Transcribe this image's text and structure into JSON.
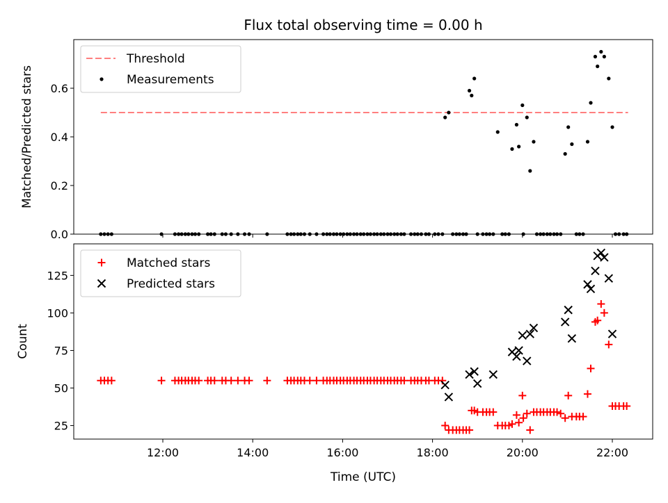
{
  "chart_data": [
    {
      "type": "scatter",
      "title": "Flux total observing time = 0.00 h",
      "xlabel": "",
      "ylabel": "Matched/Predicted stars",
      "x_unit": "hours UTC",
      "xlim": [
        10.0,
        23.0
      ],
      "ylim": [
        0,
        0.8
      ],
      "yticks": [
        0.0,
        0.2,
        0.4,
        0.6
      ],
      "ytick_labels": [
        "0.0",
        "0.2",
        "0.4",
        "0.6"
      ],
      "xticks": [
        12,
        14,
        16,
        18,
        20,
        22
      ],
      "grid": false,
      "legend_position": "top-left",
      "colors": {
        "threshold": "#ff7f7f",
        "measurements": "#000000"
      },
      "series": [
        {
          "name": "Threshold",
          "kind": "dashed-line",
          "x": [
            10.62,
            22.35
          ],
          "y": [
            0.5,
            0.5
          ]
        },
        {
          "name": "Measurements",
          "kind": "points",
          "x": [
            10.62,
            10.7,
            10.78,
            10.86,
            11.97,
            12.27,
            12.35,
            12.42,
            12.5,
            12.57,
            12.65,
            12.72,
            12.8,
            13.0,
            13.07,
            13.15,
            13.32,
            13.4,
            13.52,
            13.67,
            13.82,
            13.92,
            14.32,
            14.77,
            14.85,
            14.92,
            15.0,
            15.07,
            15.15,
            15.27,
            15.42,
            15.57,
            15.65,
            15.72,
            15.8,
            15.87,
            15.95,
            16.02,
            16.1,
            16.17,
            16.25,
            16.32,
            16.4,
            16.47,
            16.55,
            16.62,
            16.7,
            16.77,
            16.85,
            16.92,
            17.0,
            17.07,
            17.15,
            17.22,
            17.3,
            17.37,
            17.52,
            17.6,
            17.67,
            17.75,
            17.85,
            17.92,
            18.05,
            18.13,
            18.22,
            18.28,
            18.36,
            18.45,
            18.53,
            18.6,
            18.68,
            18.75,
            18.82,
            18.87,
            18.93,
            19.0,
            19.12,
            19.2,
            19.27,
            19.35,
            19.45,
            19.55,
            19.62,
            19.7,
            19.77,
            19.87,
            19.92,
            20.0,
            20.02,
            20.1,
            20.17,
            20.25,
            20.32,
            20.4,
            20.47,
            20.55,
            20.62,
            20.7,
            20.77,
            20.85,
            20.95,
            21.02,
            21.1,
            21.2,
            21.27,
            21.35,
            21.45,
            21.52,
            21.62,
            21.67,
            21.75,
            21.82,
            21.92,
            22.0,
            22.07,
            22.15,
            22.25,
            22.32
          ],
          "y": [
            0,
            0,
            0,
            0,
            0,
            0,
            0,
            0,
            0,
            0,
            0,
            0,
            0,
            0,
            0,
            0,
            0,
            0,
            0,
            0,
            0,
            0,
            0,
            0,
            0,
            0,
            0,
            0,
            0,
            0,
            0,
            0,
            0,
            0,
            0,
            0,
            0,
            0,
            0,
            0,
            0,
            0,
            0,
            0,
            0,
            0,
            0,
            0,
            0,
            0,
            0,
            0,
            0,
            0,
            0,
            0,
            0,
            0,
            0,
            0,
            0,
            0,
            0,
            0,
            0,
            0.48,
            0.5,
            0,
            0,
            0,
            0,
            0,
            0.59,
            0.57,
            0.64,
            0,
            0,
            0,
            0,
            0,
            0.42,
            0,
            0,
            0,
            0.35,
            0.45,
            0.36,
            0.53,
            0,
            0.48,
            0.26,
            0.38,
            0,
            0,
            0,
            0,
            0,
            0,
            0,
            0,
            0.33,
            0.44,
            0.37,
            0,
            0,
            0,
            0.38,
            0.54,
            0.73,
            0.69,
            0.75,
            0.73,
            0.64,
            0.44,
            0,
            0,
            0,
            0
          ]
        }
      ]
    },
    {
      "type": "scatter",
      "title": "",
      "xlabel": "Time (UTC)",
      "ylabel": "Count",
      "x_unit": "hours UTC",
      "xlim": [
        10.0,
        23.0
      ],
      "ylim": [
        16,
        146
      ],
      "yticks": [
        25,
        50,
        75,
        100,
        125
      ],
      "ytick_labels": [
        "25",
        "50",
        "75",
        "100",
        "125"
      ],
      "xticks": [
        12,
        14,
        16,
        18,
        20,
        22
      ],
      "xtick_labels": [
        "12:00",
        "14:00",
        "16:00",
        "18:00",
        "20:00",
        "22:00"
      ],
      "grid": false,
      "legend_position": "top-left",
      "colors": {
        "matched": "#ff0000",
        "predicted": "#000000"
      },
      "series": [
        {
          "name": "Matched stars",
          "marker": "plus",
          "x": [
            10.62,
            10.7,
            10.78,
            10.86,
            11.97,
            12.27,
            12.35,
            12.42,
            12.5,
            12.57,
            12.65,
            12.72,
            12.8,
            13.0,
            13.07,
            13.15,
            13.32,
            13.4,
            13.52,
            13.67,
            13.82,
            13.92,
            14.32,
            14.77,
            14.85,
            14.92,
            15.0,
            15.07,
            15.15,
            15.27,
            15.42,
            15.57,
            15.65,
            15.72,
            15.8,
            15.87,
            15.95,
            16.02,
            16.1,
            16.17,
            16.25,
            16.32,
            16.4,
            16.47,
            16.55,
            16.62,
            16.7,
            16.77,
            16.85,
            16.92,
            17.0,
            17.07,
            17.15,
            17.22,
            17.3,
            17.37,
            17.52,
            17.6,
            17.67,
            17.75,
            17.85,
            17.92,
            18.05,
            18.13,
            18.22,
            18.28,
            18.36,
            18.45,
            18.53,
            18.6,
            18.68,
            18.75,
            18.82,
            18.87,
            18.93,
            19.0,
            19.12,
            19.2,
            19.27,
            19.35,
            19.45,
            19.55,
            19.62,
            19.7,
            19.77,
            19.87,
            19.92,
            20.0,
            20.02,
            20.1,
            20.17,
            20.25,
            20.32,
            20.4,
            20.47,
            20.55,
            20.62,
            20.7,
            20.77,
            20.85,
            20.95,
            21.02,
            21.1,
            21.2,
            21.27,
            21.35,
            21.45,
            21.52,
            21.62,
            21.67,
            21.75,
            21.82,
            21.92,
            22.0,
            22.07,
            22.15,
            22.25,
            22.32
          ],
          "y": [
            55,
            55,
            55,
            55,
            55,
            55,
            55,
            55,
            55,
            55,
            55,
            55,
            55,
            55,
            55,
            55,
            55,
            55,
            55,
            55,
            55,
            55,
            55,
            55,
            55,
            55,
            55,
            55,
            55,
            55,
            55,
            55,
            55,
            55,
            55,
            55,
            55,
            55,
            55,
            55,
            55,
            55,
            55,
            55,
            55,
            55,
            55,
            55,
            55,
            55,
            55,
            55,
            55,
            55,
            55,
            55,
            55,
            55,
            55,
            55,
            55,
            55,
            55,
            55,
            55,
            25,
            22,
            22,
            22,
            22,
            22,
            22,
            22,
            35,
            35,
            34,
            34,
            34,
            34,
            34,
            25,
            25,
            25,
            25,
            26,
            32,
            27,
            45,
            30,
            33,
            22,
            34,
            34,
            34,
            34,
            34,
            34,
            34,
            34,
            33,
            30,
            45,
            31,
            31,
            31,
            31,
            46,
            63,
            94,
            95,
            106,
            100,
            79,
            38,
            38,
            38,
            38,
            38
          ],
          "labels_missing_values_note": ""
        },
        {
          "name": "Predicted stars",
          "marker": "x",
          "x": [
            18.28,
            18.36,
            18.82,
            18.93,
            19.0,
            19.35,
            19.77,
            19.87,
            19.92,
            20.0,
            20.1,
            20.17,
            20.25,
            20.95,
            21.02,
            21.1,
            21.45,
            21.52,
            21.62,
            21.67,
            21.75,
            21.82,
            21.92,
            22.0
          ],
          "y": [
            52,
            44,
            59,
            61,
            53,
            59,
            74,
            71,
            75,
            85,
            68,
            86,
            90,
            94,
            102,
            83,
            119,
            116,
            128,
            138,
            140,
            137,
            123,
            86
          ]
        }
      ]
    }
  ]
}
